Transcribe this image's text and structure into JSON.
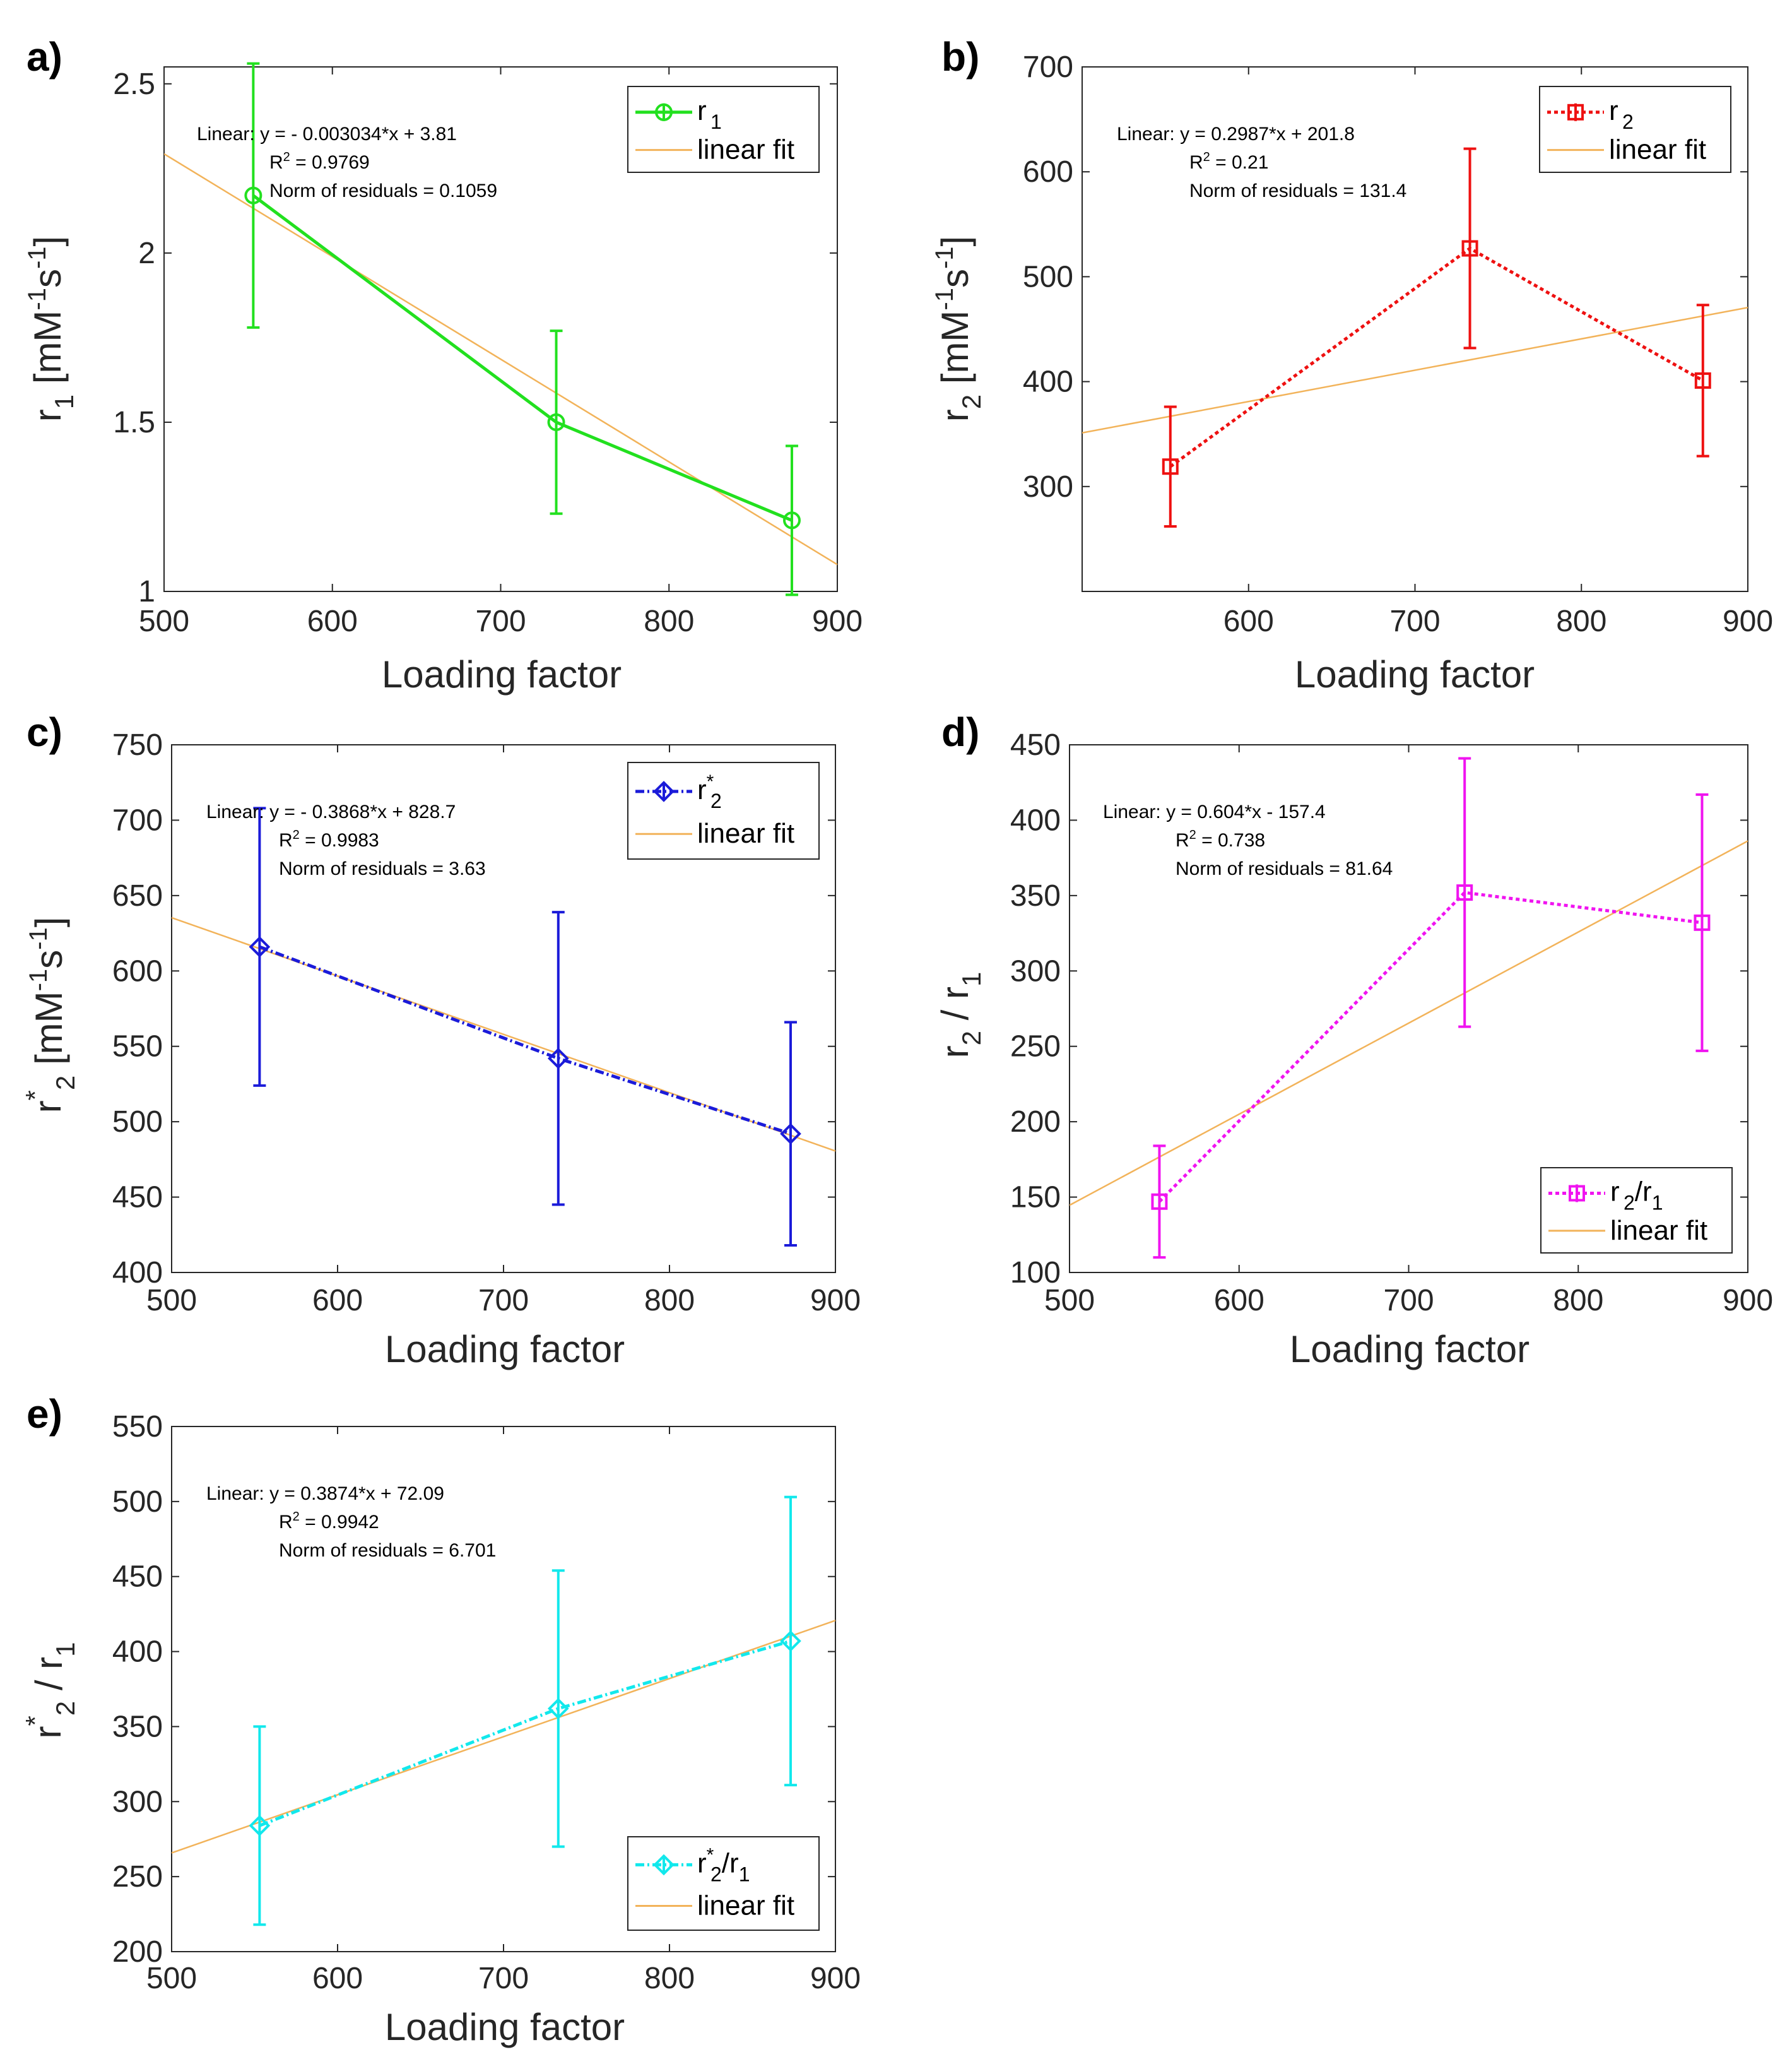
{
  "chart_data": [
    {
      "id": "a",
      "type": "line",
      "panel_label": "a)",
      "xlabel": "Loading factor",
      "ylabel": "r",
      "ylabel_sub": "1",
      "ylabel_unit": " [mM",
      "ylabel_unit_sup1": "-1",
      "ylabel_unit_mid": "s",
      "ylabel_unit_sup2": "-1",
      "ylabel_unit_end": "]",
      "xlim": [
        500,
        900
      ],
      "ylim": [
        1,
        2.55
      ],
      "xticks": [
        500,
        600,
        700,
        800,
        900
      ],
      "yticks": [
        1,
        1.5,
        2,
        2.5
      ],
      "yticklabels": [
        "1",
        "1.5",
        "2",
        "2.5"
      ],
      "series": [
        {
          "name": "r",
          "name_sub": "1",
          "name_sup": "",
          "color": "#22e01f",
          "marker": "circle",
          "dash": "",
          "x": [
            553,
            733,
            873
          ],
          "y": [
            2.17,
            1.5,
            1.21
          ],
          "err": [
            0.39,
            0.27,
            0.22
          ]
        }
      ],
      "fit": {
        "slope": -0.003034,
        "intercept": 3.81,
        "color": "#f2b35a",
        "label": "linear fit",
        "eq": "Linear:  y = - 0.003034*x + 3.81",
        "r2_label": "R",
        "r2_sup": "2",
        "r2_value": " = 0.9769",
        "norm": "Norm of residuals = 0.1059"
      },
      "legend": "top-right"
    },
    {
      "id": "b",
      "type": "line",
      "panel_label": "b)",
      "xlabel": "Loading factor",
      "ylabel": "r",
      "ylabel_sub": "2",
      "ylabel_unit": " [mM",
      "ylabel_unit_sup1": "-1",
      "ylabel_unit_mid": "s",
      "ylabel_unit_sup2": "-1",
      "ylabel_unit_end": "]",
      "xlim": [
        500,
        900
      ],
      "ylim": [
        200,
        700
      ],
      "xticks": [
        600,
        700,
        800,
        900
      ],
      "yticks": [
        300,
        400,
        500,
        600,
        700
      ],
      "yticklabels": [
        "300",
        "400",
        "500",
        "600",
        "700"
      ],
      "series": [
        {
          "name": "r",
          "name_sub": "2",
          "name_sup": "",
          "color": "#ee1111",
          "marker": "square",
          "dash": "6,5",
          "x": [
            553,
            733,
            873
          ],
          "y": [
            319,
            527,
            401
          ],
          "err": [
            57,
            95,
            72
          ]
        }
      ],
      "fit": {
        "slope": 0.2987,
        "intercept": 201.8,
        "color": "#f2b35a",
        "label": "linear fit",
        "eq": "Linear:  y = 0.2987*x + 201.8",
        "r2_label": "R",
        "r2_sup": "2",
        "r2_value": " = 0.21",
        "norm": "Norm of residuals = 131.4"
      },
      "legend": "top-right"
    },
    {
      "id": "c",
      "type": "line",
      "panel_label": "c)",
      "xlabel": "Loading factor",
      "ylabel": "r",
      "ylabel_sub": "2",
      "ylabel_sup": "*",
      "ylabel_unit": " [mM",
      "ylabel_unit_sup1": "-1",
      "ylabel_unit_mid": "s",
      "ylabel_unit_sup2": "-1",
      "ylabel_unit_end": "]",
      "xlim": [
        500,
        900
      ],
      "ylim": [
        400,
        750
      ],
      "xticks": [
        500,
        600,
        700,
        800,
        900
      ],
      "yticks": [
        400,
        450,
        500,
        550,
        600,
        650,
        700,
        750
      ],
      "yticklabels": [
        "400",
        "450",
        "500",
        "550",
        "600",
        "650",
        "700",
        "750"
      ],
      "series": [
        {
          "name": "r",
          "name_sub": "2",
          "name_sup": "*",
          "color": "#1b1bd9",
          "marker": "diamond",
          "dash": "14,5,3,5",
          "x": [
            553,
            733,
            873
          ],
          "y": [
            616,
            542,
            492
          ],
          "err": [
            92,
            97,
            74
          ]
        }
      ],
      "fit": {
        "slope": -0.3868,
        "intercept": 828.7,
        "color": "#f2b35a",
        "label": "linear fit",
        "eq": "Linear:  y = - 0.3868*x + 828.7",
        "r2_label": "R",
        "r2_sup": "2",
        "r2_value": " = 0.9983",
        "norm": "Norm of residuals = 3.63"
      },
      "legend": "top-right"
    },
    {
      "id": "d",
      "type": "line",
      "panel_label": "d)",
      "xlabel": "Loading factor",
      "ylabel": "r",
      "ylabel_sub": "2",
      "ylabel_sep": " / r",
      "ylabel_sub2": "1",
      "xlim": [
        500,
        900
      ],
      "ylim": [
        100,
        450
      ],
      "xticks": [
        500,
        600,
        700,
        800,
        900
      ],
      "yticks": [
        100,
        150,
        200,
        250,
        300,
        350,
        400,
        450
      ],
      "yticklabels": [
        "100",
        "150",
        "200",
        "250",
        "300",
        "350",
        "400",
        "450"
      ],
      "series": [
        {
          "name": "r",
          "name_sub": "2",
          "name_sup": "",
          "name_mid": "/r",
          "name_sub2": "1",
          "color": "#f014f0",
          "marker": "square",
          "dash": "6,5",
          "x": [
            553,
            733,
            873
          ],
          "y": [
            147,
            352,
            332
          ],
          "err": [
            37,
            89,
            85
          ]
        }
      ],
      "fit": {
        "slope": 0.604,
        "intercept": -157.4,
        "color": "#f2b35a",
        "label": "linear fit",
        "eq": "Linear:  y = 0.604*x - 157.4",
        "r2_label": "R",
        "r2_sup": "2",
        "r2_value": " = 0.738",
        "norm": "Norm of residuals = 81.64"
      },
      "legend": "bottom-right"
    },
    {
      "id": "e",
      "type": "line",
      "panel_label": "e)",
      "xlabel": "Loading factor",
      "ylabel": "r",
      "ylabel_sub": "2",
      "ylabel_sup": "*",
      "ylabel_sep": " / r",
      "ylabel_sub2": "1",
      "xlim": [
        500,
        900
      ],
      "ylim": [
        200,
        550
      ],
      "xticks": [
        500,
        600,
        700,
        800,
        900
      ],
      "yticks": [
        200,
        250,
        300,
        350,
        400,
        450,
        500,
        550
      ],
      "yticklabels": [
        "200",
        "250",
        "300",
        "350",
        "400",
        "450",
        "500",
        "550"
      ],
      "series": [
        {
          "name": "r",
          "name_sub": "2",
          "name_sup": "*",
          "name_mid": "/r",
          "name_sub2": "1",
          "color": "#12e8ec",
          "marker": "diamond",
          "dash": "14,5,3,5",
          "x": [
            553,
            733,
            873
          ],
          "y": [
            284,
            362,
            407
          ],
          "err": [
            66,
            92,
            96
          ]
        }
      ],
      "fit": {
        "slope": 0.3874,
        "intercept": 72.09,
        "color": "#f2b35a",
        "label": "linear fit",
        "eq": "Linear:  y = 0.3874*x + 72.09",
        "r2_label": "R",
        "r2_sup": "2",
        "r2_value": " = 0.9942",
        "norm": "Norm of residuals = 6.701"
      },
      "legend": "bottom-right"
    }
  ]
}
